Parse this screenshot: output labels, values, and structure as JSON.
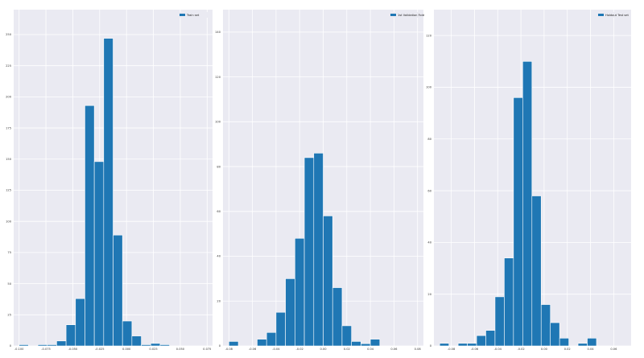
{
  "chart_data": [
    {
      "type": "bar",
      "legend": "Train set",
      "legend_position": "top-right",
      "grid": true,
      "color": "#1f77b4",
      "background": "#eaeaf2",
      "xlim": [
        -0.105,
        0.08
      ],
      "ylim": [
        0,
        270
      ],
      "xticks": [
        -0.1,
        -0.075,
        -0.05,
        -0.025,
        0.0,
        0.025,
        0.05,
        0.075
      ],
      "xtick_labels": [
        "-0.100",
        "-0.075",
        "-0.050",
        "-0.025",
        "0.000",
        "0.025",
        "0.050",
        "0.075"
      ],
      "yticks": [
        0,
        25,
        50,
        75,
        100,
        125,
        150,
        175,
        200,
        225,
        250
      ],
      "ytick_labels": [
        "0",
        "25",
        "50",
        "75",
        "100",
        "125",
        "150",
        "175",
        "200",
        "225",
        "250"
      ],
      "bin_start": -0.1,
      "bin_width": 0.00875,
      "values": [
        1,
        0,
        1,
        1,
        4,
        17,
        38,
        193,
        148,
        247,
        89,
        20,
        8,
        1,
        2,
        1
      ]
    },
    {
      "type": "bar",
      "legend": "1st Validation Fold",
      "legend_position": "top-right",
      "grid": true,
      "color": "#1f77b4",
      "background": "#eaeaf2",
      "xlim": [
        -0.085,
        0.085
      ],
      "ylim": [
        0,
        150
      ],
      "xticks": [
        -0.08,
        -0.06,
        -0.04,
        -0.02,
        0.0,
        0.02,
        0.04,
        0.06,
        0.08
      ],
      "xtick_labels": [
        "-0.08",
        "-0.06",
        "-0.04",
        "-0.02",
        "0.00",
        "0.02",
        "0.04",
        "0.06",
        "0.08"
      ],
      "yticks": [
        0,
        20,
        40,
        60,
        80,
        100,
        120,
        140
      ],
      "ytick_labels": [
        "0",
        "20",
        "40",
        "60",
        "80",
        "100",
        "120",
        "140"
      ],
      "bin_start": -0.08,
      "bin_width": 0.008,
      "values": [
        2,
        0,
        0,
        3,
        6,
        15,
        30,
        48,
        84,
        86,
        58,
        26,
        9,
        2,
        1,
        3
      ]
    },
    {
      "type": "bar",
      "legend": "Holdout Test set",
      "legend_position": "top-right",
      "grid": true,
      "color": "#1f77b4",
      "background": "#eaeaf2",
      "xlim": [
        -0.095,
        0.075
      ],
      "ylim": [
        0,
        130
      ],
      "xticks": [
        -0.08,
        -0.06,
        -0.04,
        -0.02,
        0.0,
        0.02,
        0.04,
        0.06
      ],
      "xtick_labels": [
        "-0.08",
        "-0.06",
        "-0.04",
        "-0.02",
        "0.00",
        "0.02",
        "0.04",
        "0.06"
      ],
      "yticks": [
        0,
        20,
        40,
        60,
        80,
        100,
        120
      ],
      "ytick_labels": [
        "0",
        "20",
        "40",
        "60",
        "80",
        "100",
        "120"
      ],
      "bin_start": -0.09,
      "bin_width": 0.00795,
      "values": [
        1,
        0,
        1,
        1,
        4,
        6,
        19,
        34,
        96,
        110,
        58,
        16,
        9,
        3,
        0,
        1,
        3
      ]
    }
  ]
}
